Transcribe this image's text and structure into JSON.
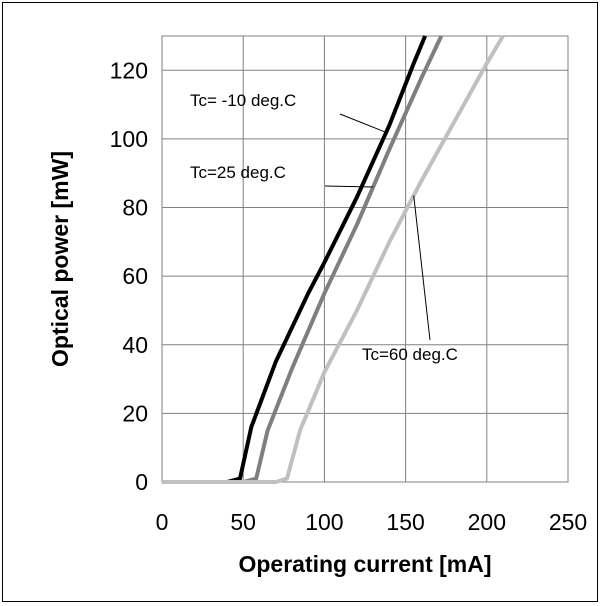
{
  "chart_data": {
    "type": "line",
    "xlabel": "Operating current [mA]",
    "ylabel": "Optical power [mW]",
    "xlim": [
      0,
      250
    ],
    "ylim": [
      0,
      130
    ],
    "xticks": [
      0,
      50,
      100,
      150,
      200,
      250
    ],
    "yticks": [
      0,
      20,
      40,
      60,
      80,
      100,
      120
    ],
    "grid": true,
    "series": [
      {
        "label": "Tc= -10 deg.C",
        "color": "#000000",
        "x": [
          0,
          40,
          48,
          55,
          70,
          90,
          100,
          120,
          140,
          155,
          162
        ],
        "y": [
          0,
          0,
          1,
          16,
          35,
          55,
          64,
          83,
          104,
          122,
          130
        ]
      },
      {
        "label": "Tc=25 deg.C",
        "color": "#7f7f7f",
        "x": [
          0,
          50,
          58,
          65,
          80,
          100,
          120,
          140,
          160,
          172
        ],
        "y": [
          0,
          0,
          1,
          15,
          33,
          55,
          75,
          97,
          118,
          130
        ]
      },
      {
        "label": "Tc=60 deg.C",
        "color": "#c0c0c0",
        "x": [
          0,
          70,
          77,
          85,
          100,
          120,
          140,
          160,
          180,
          200,
          210
        ],
        "y": [
          0,
          0,
          1,
          15,
          32,
          50,
          70,
          88,
          105,
          122,
          130
        ]
      }
    ],
    "annotations": [
      {
        "text": "Tc= -10 deg.C",
        "series": 0,
        "at_x": 138
      },
      {
        "text": "Tc=25 deg.C",
        "series": 1,
        "at_x": 130
      },
      {
        "text": "Tc=60 deg.C",
        "series": 2,
        "at_x": 155
      }
    ]
  }
}
